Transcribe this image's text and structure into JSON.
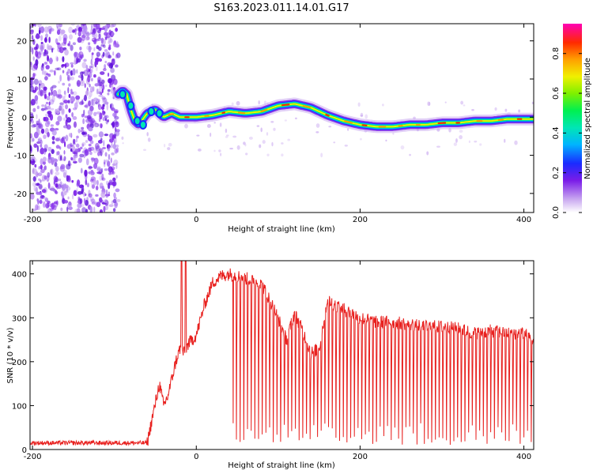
{
  "title": "S163.2023.011.14.01.G17",
  "chart_data": [
    {
      "type": "heatmap",
      "xlabel": "Height of straight line (km)",
      "ylabel": "Frequency (Hz)",
      "xlim": [
        -203,
        412
      ],
      "ylim": [
        -25,
        24.5
      ],
      "x_ticks": [
        -200,
        0,
        200,
        400
      ],
      "x_tick_labels": [
        "-200",
        "0",
        "200",
        "400"
      ],
      "y_ticks": [
        -20,
        -10,
        0,
        10,
        20
      ],
      "y_tick_labels": [
        "-20",
        "-10",
        "0",
        "10",
        "20"
      ],
      "colorbar": {
        "label": "Normalized spectral amplitude",
        "range": [
          0,
          0.95
        ],
        "ticks": [
          0.0,
          0.2,
          0.4,
          0.6,
          0.8
        ],
        "tick_labels": [
          "0.0",
          "0.2",
          "0.4",
          "0.6",
          "0.8"
        ]
      },
      "noise_region_x": [
        -203,
        -95
      ],
      "ridge": {
        "x": [
          -95,
          -90,
          -85,
          -80,
          -75,
          -70,
          -60,
          -50,
          -40,
          -30,
          -20,
          0,
          20,
          40,
          60,
          80,
          100,
          120,
          140,
          160,
          180,
          200,
          220,
          240,
          260,
          280,
          300,
          320,
          340,
          360,
          380,
          400,
          412
        ],
        "frequency": [
          6,
          7,
          6,
          2,
          -1,
          -2,
          1,
          2,
          0,
          1,
          0,
          0,
          0.5,
          1.5,
          1,
          1.5,
          3,
          3.5,
          2.5,
          0.5,
          -1,
          -2,
          -2.5,
          -2.5,
          -2,
          -2,
          -1.5,
          -1.5,
          -1,
          -1,
          -0.5,
          -0.5,
          -0.5
        ]
      }
    },
    {
      "type": "line",
      "xlabel": "Height of straight line (km)",
      "ylabel": "SNR (10 * v/v)",
      "xlim": [
        -203,
        412
      ],
      "ylim": [
        0,
        430
      ],
      "x_ticks": [
        -200,
        0,
        200,
        400
      ],
      "x_tick_labels": [
        "-200",
        "0",
        "200",
        "400"
      ],
      "y_ticks": [
        0,
        100,
        200,
        300,
        400
      ],
      "y_tick_labels": [
        "0",
        "100",
        "200",
        "300",
        "400"
      ],
      "series": [
        {
          "name": "SNR",
          "color": "#e8201e",
          "x": [
            -203,
            -60,
            -55,
            -45,
            -40,
            -35,
            -30,
            -25,
            -20,
            -15,
            -10,
            -5,
            0,
            10,
            20,
            30,
            40,
            50,
            60,
            70,
            80,
            90,
            100,
            110,
            120,
            130,
            140,
            150,
            160,
            170,
            180,
            190,
            200,
            220,
            240,
            260,
            280,
            300,
            320,
            340,
            360,
            380,
            400,
            412
          ],
          "values": [
            15,
            15,
            60,
            150,
            100,
            120,
            160,
            200,
            230,
            220,
            240,
            250,
            260,
            330,
            380,
            395,
            400,
            395,
            390,
            385,
            375,
            340,
            300,
            250,
            310,
            270,
            220,
            230,
            340,
            330,
            320,
            310,
            300,
            290,
            290,
            285,
            280,
            280,
            275,
            265,
            270,
            265,
            265,
            250
          ]
        }
      ]
    }
  ]
}
